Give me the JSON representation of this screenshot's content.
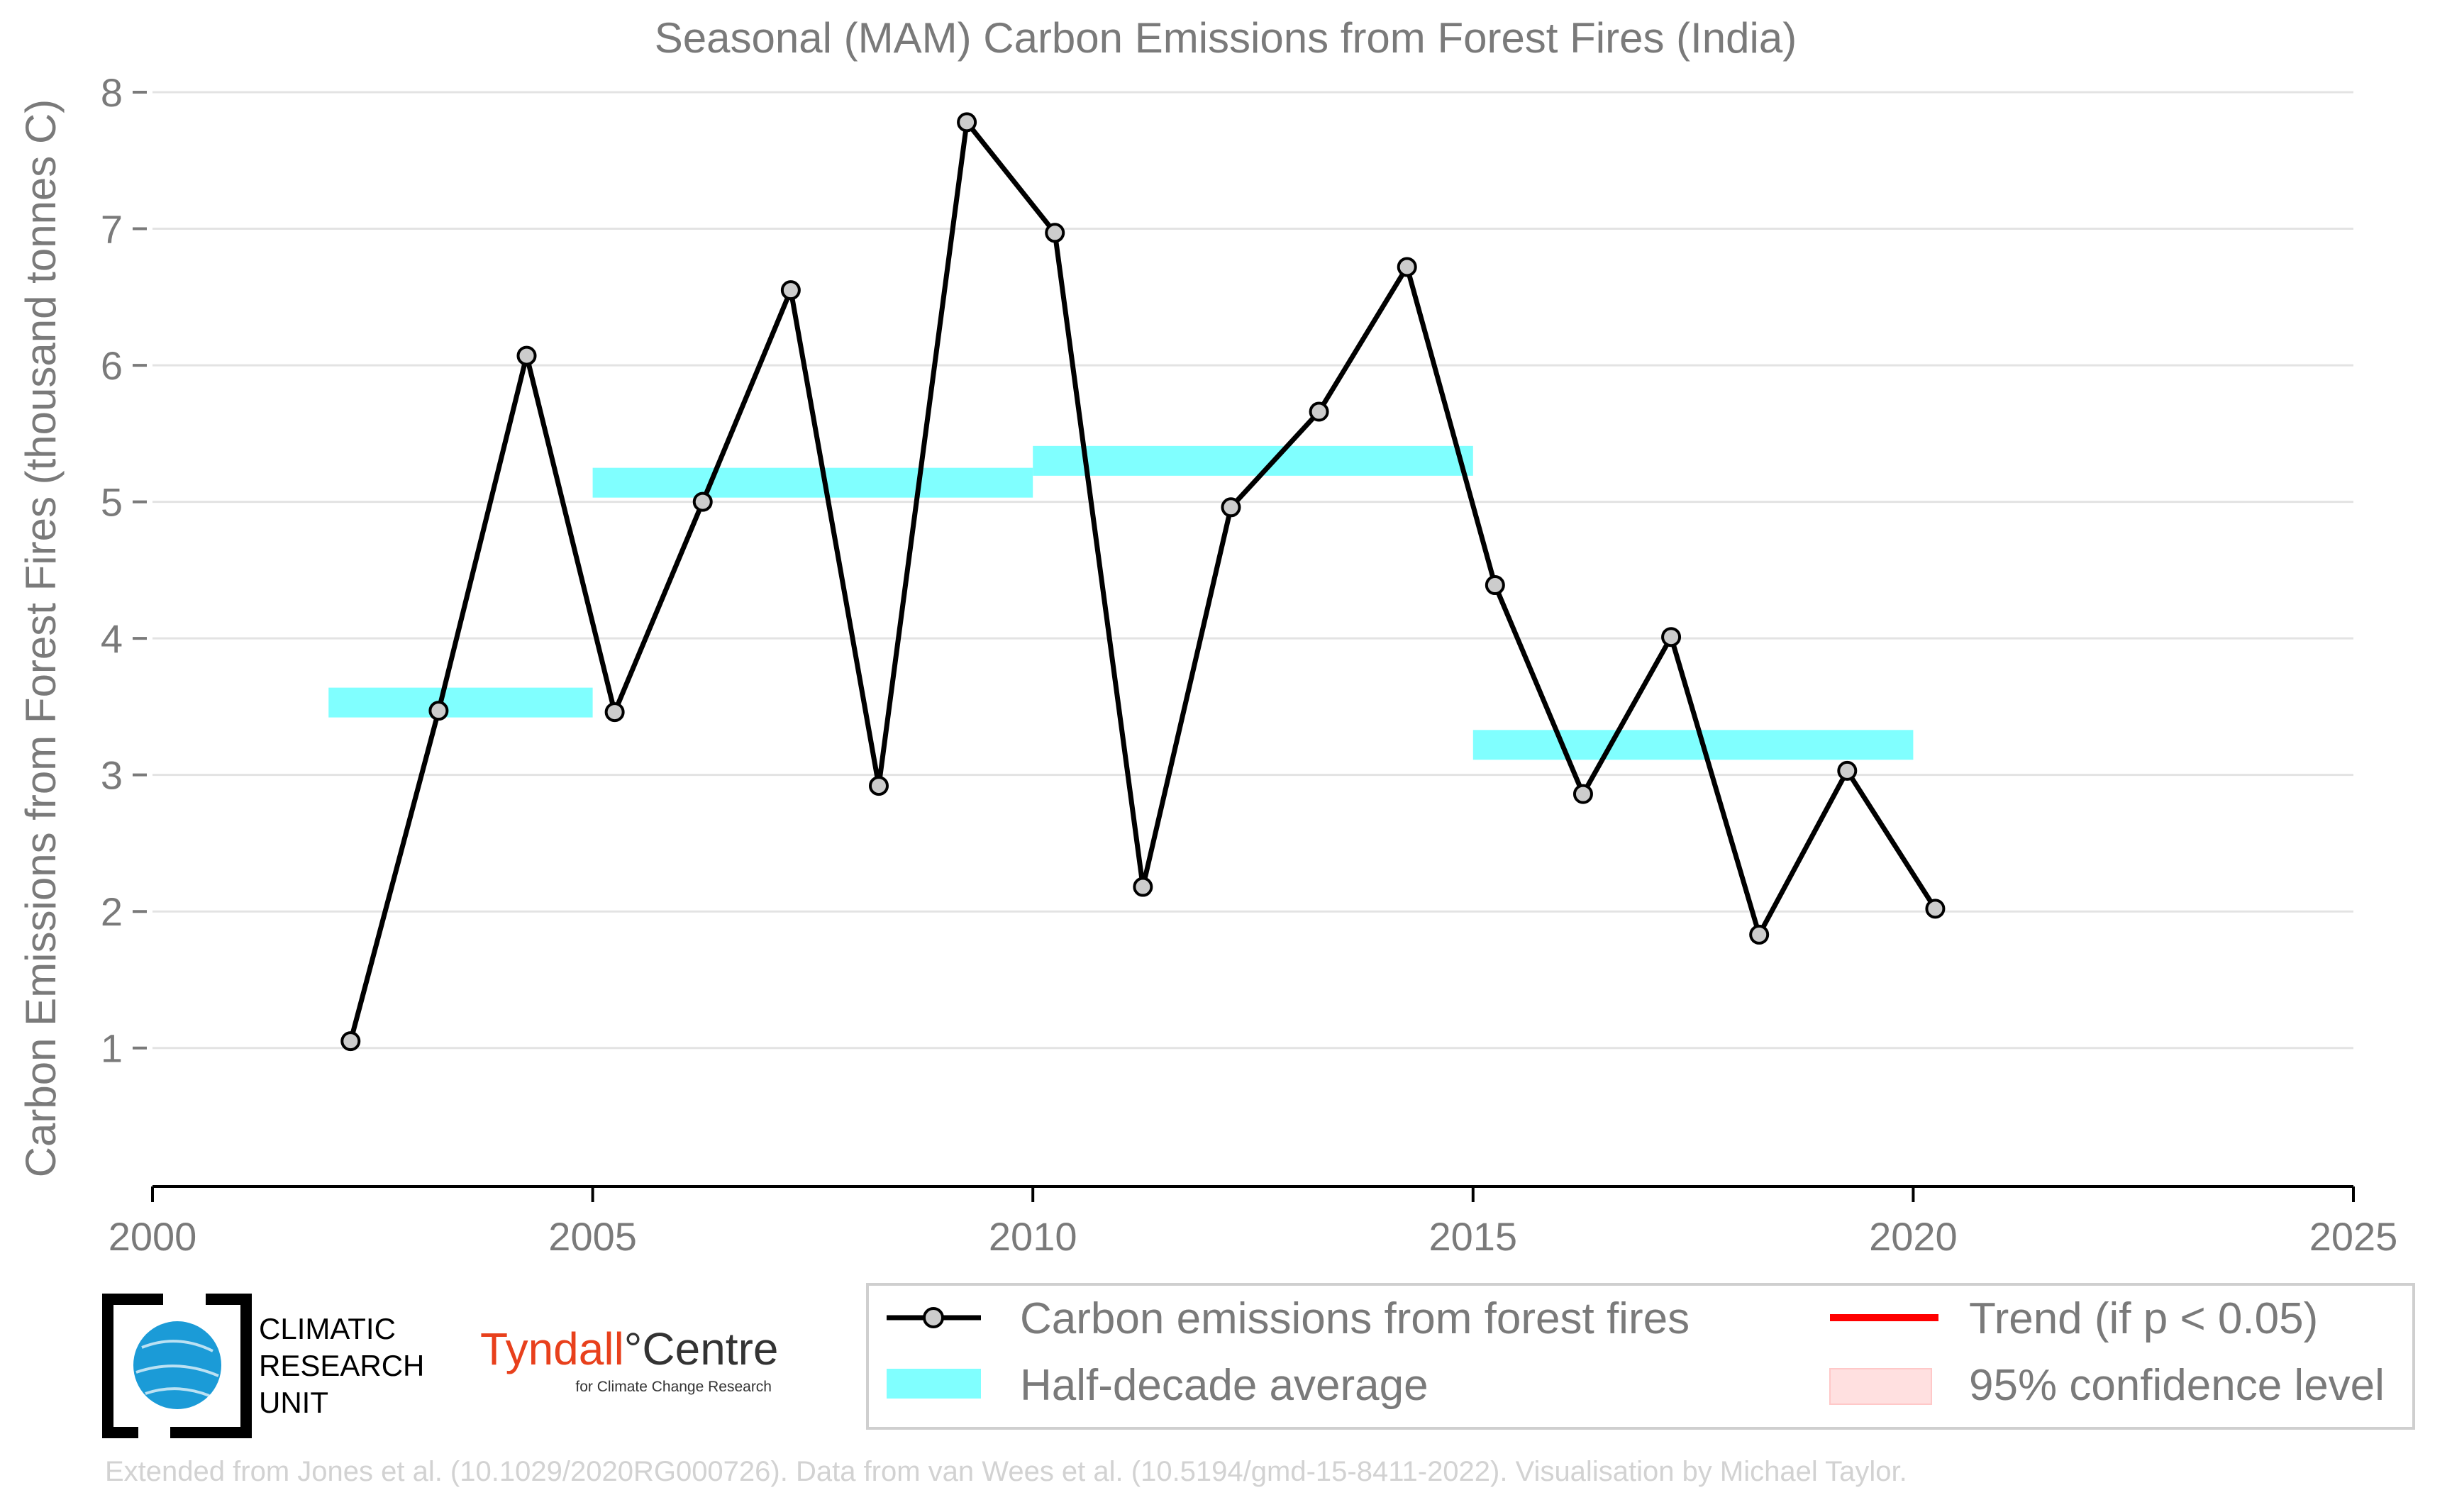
{
  "chart_data": {
    "type": "line",
    "title": "Seasonal (MAM) Carbon Emissions from Forest Fires (India)",
    "xlabel": "",
    "ylabel": "Carbon Emissions from Forest Fires (thousand tonnes C)",
    "xlim": [
      2000,
      2025
    ],
    "ylim": [
      0.5,
      8.0
    ],
    "xticks": [
      "2000",
      "2005",
      "2010",
      "2015",
      "2020",
      "2025"
    ],
    "yticks": [
      "1",
      "2",
      "3",
      "4",
      "5",
      "6",
      "7",
      "8"
    ],
    "grid": "horizontal",
    "legend_position": "bottom-right",
    "series": [
      {
        "name": "Carbon emissions from forest fires",
        "color": "#000000",
        "marker_color": "#cccccc",
        "x": [
          2002.25,
          2003.25,
          2004.25,
          2005.25,
          2006.25,
          2007.25,
          2008.25,
          2009.25,
          2010.25,
          2011.25,
          2012.25,
          2013.25,
          2014.25,
          2015.25,
          2016.25,
          2017.25,
          2018.25,
          2019.25,
          2020.25
        ],
        "values": [
          1.05,
          3.47,
          6.07,
          3.46,
          5.0,
          6.55,
          2.92,
          7.78,
          6.97,
          2.18,
          4.96,
          5.66,
          6.72,
          4.39,
          2.86,
          4.01,
          1.83,
          3.03,
          2.02
        ]
      },
      {
        "name": "Half-decade average",
        "color": "#80ffff",
        "segments": [
          {
            "x_start": 2002,
            "x_end": 2005,
            "value": 3.53
          },
          {
            "x_start": 2005,
            "x_end": 2010,
            "value": 5.14
          },
          {
            "x_start": 2010,
            "x_end": 2015,
            "value": 5.3
          },
          {
            "x_start": 2015,
            "x_end": 2020,
            "value": 3.22
          }
        ]
      }
    ],
    "legend": [
      {
        "label": "Carbon emissions from forest fires",
        "kind": "line-marker",
        "color": "#000000"
      },
      {
        "label": "Trend (if p < 0.05)",
        "kind": "line",
        "color": "#ff0000"
      },
      {
        "label": "Half-decade average",
        "kind": "band",
        "color": "#80ffff"
      },
      {
        "label": "95% confidence level",
        "kind": "band",
        "color": "#ffe0e0"
      }
    ]
  },
  "logos": {
    "cru_line1": "CLIMATIC",
    "cru_line2": "RESEARCH",
    "cru_line3": "UNIT",
    "tyndall_main_1": "Tyndall",
    "tyndall_main_2": "°Centre",
    "tyndall_sub": "for Climate Change Research"
  },
  "credit": "Extended from Jones et al. (10.1029/2020RG000726). Data from van Wees et al. (10.5194/gmd-15-8411-2022). Visualisation by Michael Taylor."
}
